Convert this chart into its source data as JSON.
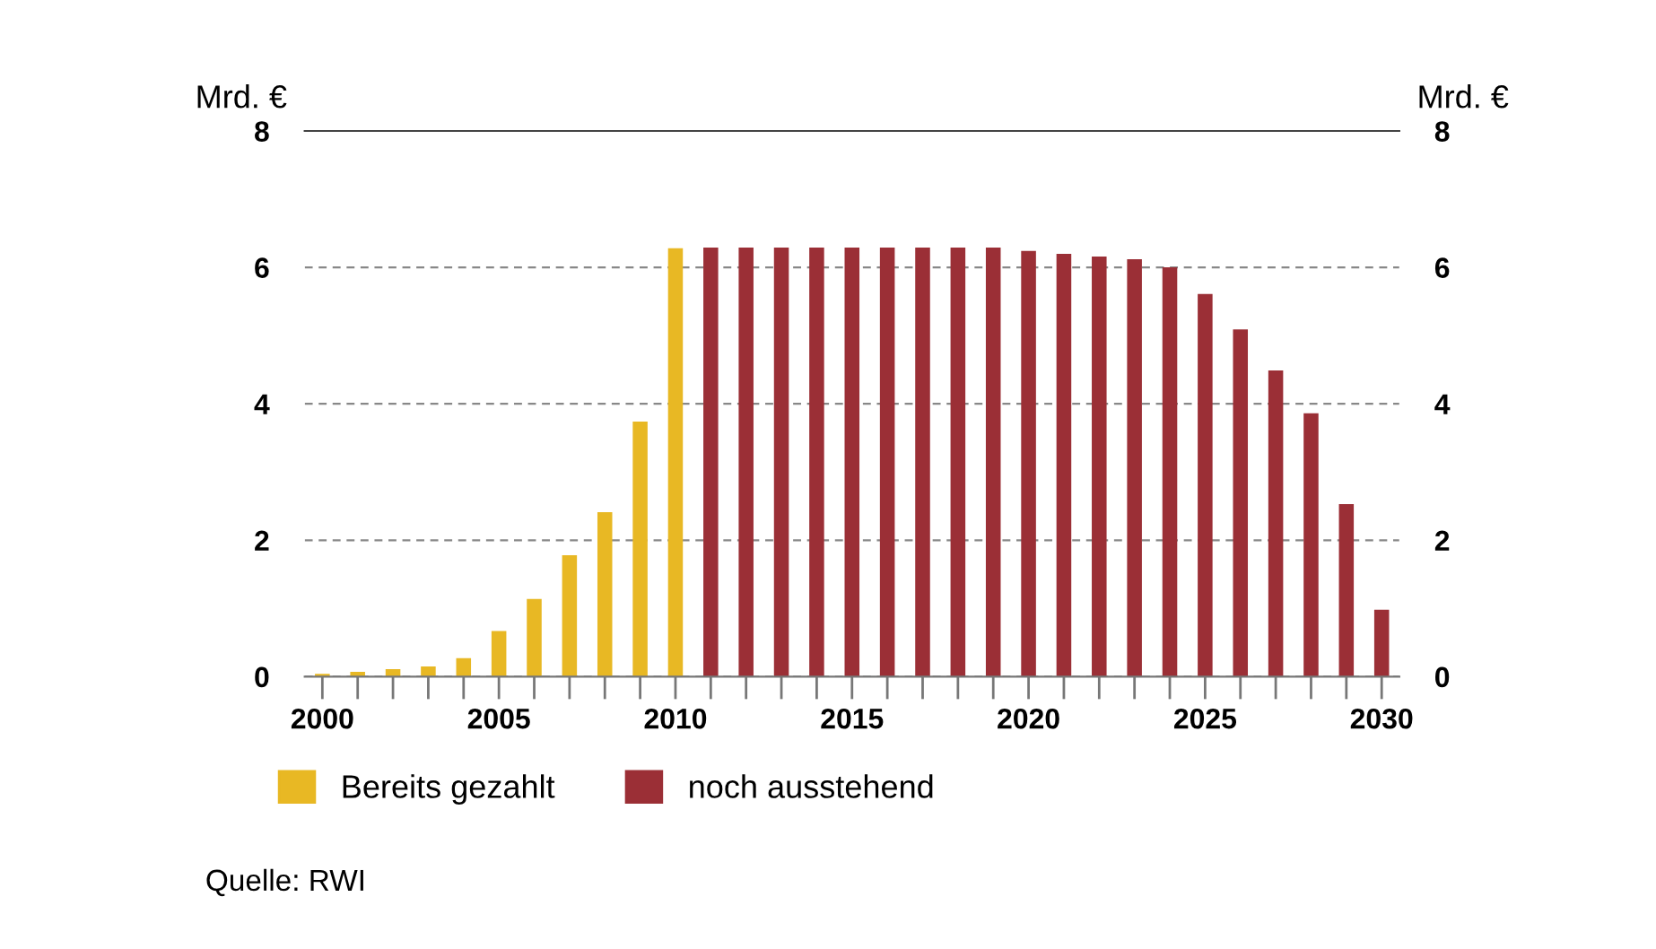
{
  "chart_data": {
    "type": "bar",
    "x": [
      2000,
      2001,
      2002,
      2003,
      2004,
      2005,
      2006,
      2007,
      2008,
      2009,
      2010,
      2011,
      2012,
      2013,
      2014,
      2015,
      2016,
      2017,
      2018,
      2019,
      2020,
      2021,
      2022,
      2023,
      2024,
      2025,
      2026,
      2027,
      2028,
      2029,
      2030
    ],
    "series": [
      {
        "name": "Bereits gezahlt",
        "color": "#e8b824",
        "values": [
          0.04,
          0.07,
          0.11,
          0.15,
          0.27,
          0.67,
          1.14,
          1.78,
          2.41,
          3.74,
          6.28,
          null,
          null,
          null,
          null,
          null,
          null,
          null,
          null,
          null,
          null,
          null,
          null,
          null,
          null,
          null,
          null,
          null,
          null,
          null,
          null
        ]
      },
      {
        "name": "noch ausstehend",
        "color": "#9b2f36",
        "values": [
          null,
          null,
          null,
          null,
          null,
          null,
          null,
          null,
          null,
          null,
          null,
          6.29,
          6.29,
          6.29,
          6.29,
          6.29,
          6.29,
          6.29,
          6.29,
          6.29,
          6.24,
          6.2,
          6.16,
          6.12,
          6.0,
          5.61,
          5.09,
          4.49,
          3.86,
          2.53,
          0.98
        ]
      }
    ],
    "ylabel": "Mrd. €",
    "y2label": "Mrd. €",
    "xlim": [
      1999.5,
      2030.5
    ],
    "xticks": [
      {
        "value": 2000,
        "label": "2000"
      },
      {
        "value": 2001,
        "label": null
      },
      {
        "value": 2002,
        "label": null
      },
      {
        "value": 2003,
        "label": null
      },
      {
        "value": 2004,
        "label": null
      },
      {
        "value": 2005,
        "label": "2005"
      },
      {
        "value": 2006,
        "label": null
      },
      {
        "value": 2007,
        "label": null
      },
      {
        "value": 2008,
        "label": null
      },
      {
        "value": 2009,
        "label": null
      },
      {
        "value": 2010,
        "label": "2010"
      },
      {
        "value": 2011,
        "label": null
      },
      {
        "value": 2012,
        "label": null
      },
      {
        "value": 2013,
        "label": null
      },
      {
        "value": 2014,
        "label": null
      },
      {
        "value": 2015,
        "label": "2015"
      },
      {
        "value": 2016,
        "label": null
      },
      {
        "value": 2017,
        "label": null
      },
      {
        "value": 2018,
        "label": null
      },
      {
        "value": 2019,
        "label": null
      },
      {
        "value": 2020,
        "label": "2020"
      },
      {
        "value": 2021,
        "label": null
      },
      {
        "value": 2022,
        "label": null
      },
      {
        "value": 2023,
        "label": null
      },
      {
        "value": 2024,
        "label": null
      },
      {
        "value": 2025,
        "label": "2025"
      },
      {
        "value": 2026,
        "label": null
      },
      {
        "value": 2027,
        "label": null
      },
      {
        "value": 2028,
        "label": null
      },
      {
        "value": 2029,
        "label": null
      },
      {
        "value": 2030,
        "label": "2030"
      }
    ],
    "ylim": [
      0,
      8
    ],
    "yticks": [
      0,
      2,
      4,
      6,
      8
    ],
    "y2lim": [
      0,
      8
    ],
    "y2ticks": [
      0,
      2,
      4,
      6,
      8
    ],
    "grid": "y",
    "legend": "bottom left",
    "annotations": [
      "Quelle: RWI"
    ]
  }
}
